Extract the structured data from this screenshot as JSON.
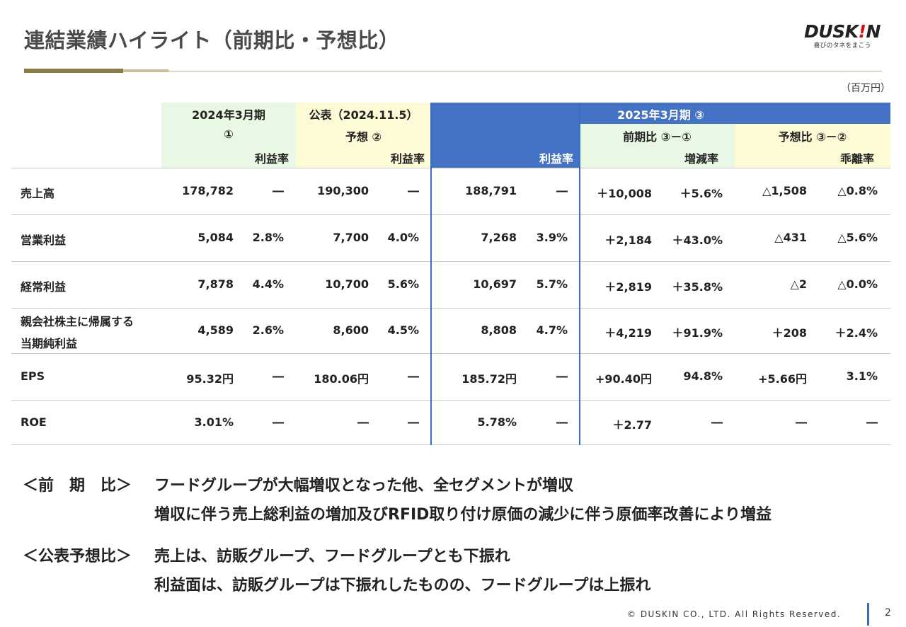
{
  "title": "連結業績ハイライト（前期比・予想比）",
  "logo": {
    "main_pre": "DUSK",
    "main_mark": "!",
    "main_post": "N",
    "tagline": "喜びのタネをまこう"
  },
  "unit": "（百万円）",
  "header": {
    "prev_year_line1": "2024年3月期",
    "prev_year_line2": "①",
    "forecast_line1": "公表（2024.11.5）",
    "forecast_line2": "予想 ②",
    "current_year": "2025年3月期 ③",
    "yoy": "前期比 ③－①",
    "vs_forecast": "予想比 ③－②",
    "margin": "利益率",
    "change_rate": "増減率",
    "deviation_rate": "乖離率"
  },
  "rows": [
    {
      "label1": "売上高",
      "label2": "",
      "v1": "178,782",
      "m1": "―",
      "v2": "190,300",
      "m2": "―",
      "v3": "188,791",
      "m3": "―",
      "d1": "＋10,008",
      "r1": "＋5.6%",
      "d2": "△1,508",
      "r2": "△0.8%"
    },
    {
      "label1": "営業利益",
      "label2": "",
      "v1": "5,084",
      "m1": "2.8%",
      "v2": "7,700",
      "m2": "4.0%",
      "v3": "7,268",
      "m3": "3.9%",
      "d1": "＋2,184",
      "r1": "＋43.0%",
      "d2": "△431",
      "r2": "△5.6%"
    },
    {
      "label1": "経常利益",
      "label2": "",
      "v1": "7,878",
      "m1": "4.4%",
      "v2": "10,700",
      "m2": "5.6%",
      "v3": "10,697",
      "m3": "5.7%",
      "d1": "＋2,819",
      "r1": "＋35.8%",
      "d2": "△2",
      "r2": "△0.0%"
    },
    {
      "label1": "親会社株主に帰属する",
      "label2": "当期純利益",
      "v1": "4,589",
      "m1": "2.6%",
      "v2": "8,600",
      "m2": "4.5%",
      "v3": "8,808",
      "m3": "4.7%",
      "d1": "＋4,219",
      "r1": "＋91.9%",
      "d2": "＋208",
      "r2": "＋2.4%"
    },
    {
      "label1": "EPS",
      "label2": "",
      "v1": "95.32円",
      "m1": "―",
      "v2": "180.06円",
      "m2": "―",
      "v3": "185.72円",
      "m3": "―",
      "d1": "+90.40円",
      "r1": "94.8%",
      "d2": "+5.66円",
      "r2": "3.1%"
    },
    {
      "label1": "ROE",
      "label2": "",
      "v1": "3.01%",
      "m1": "―",
      "v2": "―",
      "m2": "―",
      "v3": "5.78%",
      "m3": "―",
      "d1": "＋2.77",
      "r1": "―",
      "d2": "―",
      "r2": "―"
    }
  ],
  "notes": [
    {
      "heading": "＜前　期　比＞",
      "line1": "フードグループが大幅増収となった他、全セグメントが増収",
      "line2": "増収に伴う売上総利益の増加及びRFID取り付け原価の減少に伴う原価率改善により増益"
    },
    {
      "heading": "＜公表予想比＞",
      "line1": "売上は、訪販グループ、フードグループとも下振れ",
      "line2": "利益面は、訪販グループは下振れしたものの、フードグループは上振れ"
    }
  ],
  "footer": "© DUSKIN CO., LTD. All Rights Reserved.",
  "page_number": "2",
  "colors": {
    "accent_blue": "#3a6cbf",
    "green_bg": "#e9f8e4",
    "yellow_bg": "#fdfbd6",
    "gold": "#8d7b45"
  }
}
